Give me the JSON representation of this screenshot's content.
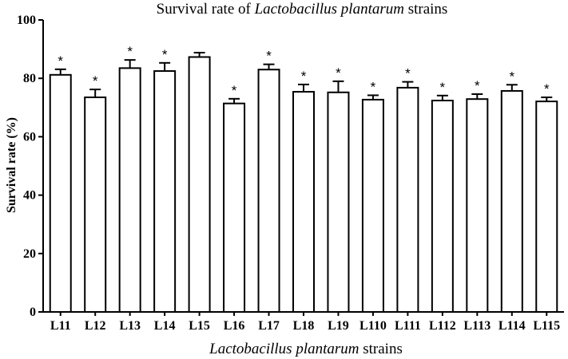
{
  "chart_data": {
    "type": "bar",
    "title_prefix": "Survival rate of ",
    "title_italic": "Lactobacillus plantarum",
    "title_suffix": " strains",
    "xlabel_italic": "Lactobacillus plantarum",
    "xlabel_suffix": " strains",
    "ylabel": "Survival rate (%)",
    "ylim": [
      0,
      100
    ],
    "yticks": [
      "0",
      "20",
      "40",
      "60",
      "80",
      "100"
    ],
    "categories": [
      "L11",
      "L12",
      "L13",
      "L14",
      "L15",
      "L16",
      "L17",
      "L18",
      "L19",
      "L110",
      "L111",
      "L112",
      "L113",
      "L114",
      "L115"
    ],
    "values": [
      81.2,
      73.5,
      83.5,
      82.5,
      87.3,
      71.4,
      83.0,
      75.4,
      75.2,
      72.7,
      76.8,
      72.4,
      72.9,
      75.7,
      72.1
    ],
    "errors": [
      1.9,
      2.7,
      2.8,
      2.8,
      1.5,
      1.6,
      1.8,
      2.5,
      3.8,
      1.5,
      2.0,
      1.7,
      1.7,
      2.1,
      1.4
    ],
    "annotations": [
      "*",
      "*",
      "*",
      "*",
      "",
      "*",
      "*",
      "*",
      "*",
      "*",
      "*",
      "*",
      "*",
      "*",
      "*"
    ]
  }
}
